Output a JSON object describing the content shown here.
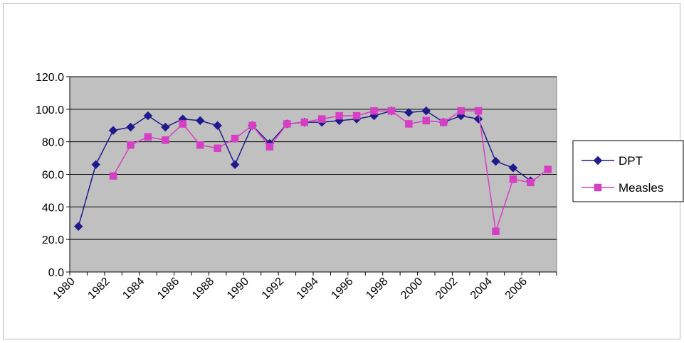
{
  "chart_data": {
    "type": "line",
    "title": "",
    "xlabel": "",
    "ylabel": "",
    "ylim": [
      0,
      120
    ],
    "y_ticks": [
      "0.0",
      "20.0",
      "40.0",
      "60.0",
      "80.0",
      "100.0",
      "120.0"
    ],
    "x_range": [
      1980,
      2008
    ],
    "x_tick_labels": [
      "1980",
      "1982",
      "1984",
      "1986",
      "1988",
      "1990",
      "1992",
      "1994",
      "1996",
      "1998",
      "2000",
      "2002",
      "2004",
      "2006"
    ],
    "grid": true,
    "legend_position": "right",
    "plot_background": "#c0c0c0",
    "series": [
      {
        "name": "DPT",
        "color": "#1f1a8c",
        "marker": "diamond",
        "points": [
          [
            1980,
            28
          ],
          [
            1981,
            66
          ],
          [
            1982,
            87
          ],
          [
            1983,
            89
          ],
          [
            1984,
            96
          ],
          [
            1985,
            89
          ],
          [
            1986,
            94
          ],
          [
            1987,
            93
          ],
          [
            1988,
            90
          ],
          [
            1989,
            66
          ],
          [
            1990,
            90
          ],
          [
            1991,
            79
          ],
          [
            1992,
            91
          ],
          [
            1993,
            92
          ],
          [
            1994,
            92
          ],
          [
            1995,
            93
          ],
          [
            1996,
            94
          ],
          [
            1997,
            96
          ],
          [
            1998,
            99
          ],
          [
            1999,
            98
          ],
          [
            2000,
            99
          ],
          [
            2001,
            92
          ],
          [
            2002,
            96
          ],
          [
            2003,
            94
          ],
          [
            2004,
            68
          ],
          [
            2005,
            64
          ],
          [
            2006,
            56
          ]
        ]
      },
      {
        "name": "Measles",
        "color": "#d63fc4",
        "marker": "square",
        "points": [
          [
            1982,
            59
          ],
          [
            1983,
            78
          ],
          [
            1984,
            83
          ],
          [
            1985,
            81
          ],
          [
            1986,
            91
          ],
          [
            1987,
            78
          ],
          [
            1988,
            76
          ],
          [
            1989,
            82
          ],
          [
            1990,
            90
          ],
          [
            1991,
            77
          ],
          [
            1992,
            91
          ],
          [
            1993,
            92
          ],
          [
            1994,
            94
          ],
          [
            1995,
            96
          ],
          [
            1996,
            96
          ],
          [
            1997,
            99
          ],
          [
            1998,
            99
          ],
          [
            1999,
            91
          ],
          [
            2000,
            93
          ],
          [
            2001,
            92
          ],
          [
            2002,
            99
          ],
          [
            2003,
            99
          ],
          [
            2004,
            25
          ],
          [
            2005,
            57
          ],
          [
            2006,
            55
          ],
          [
            2007,
            63
          ]
        ]
      }
    ]
  }
}
